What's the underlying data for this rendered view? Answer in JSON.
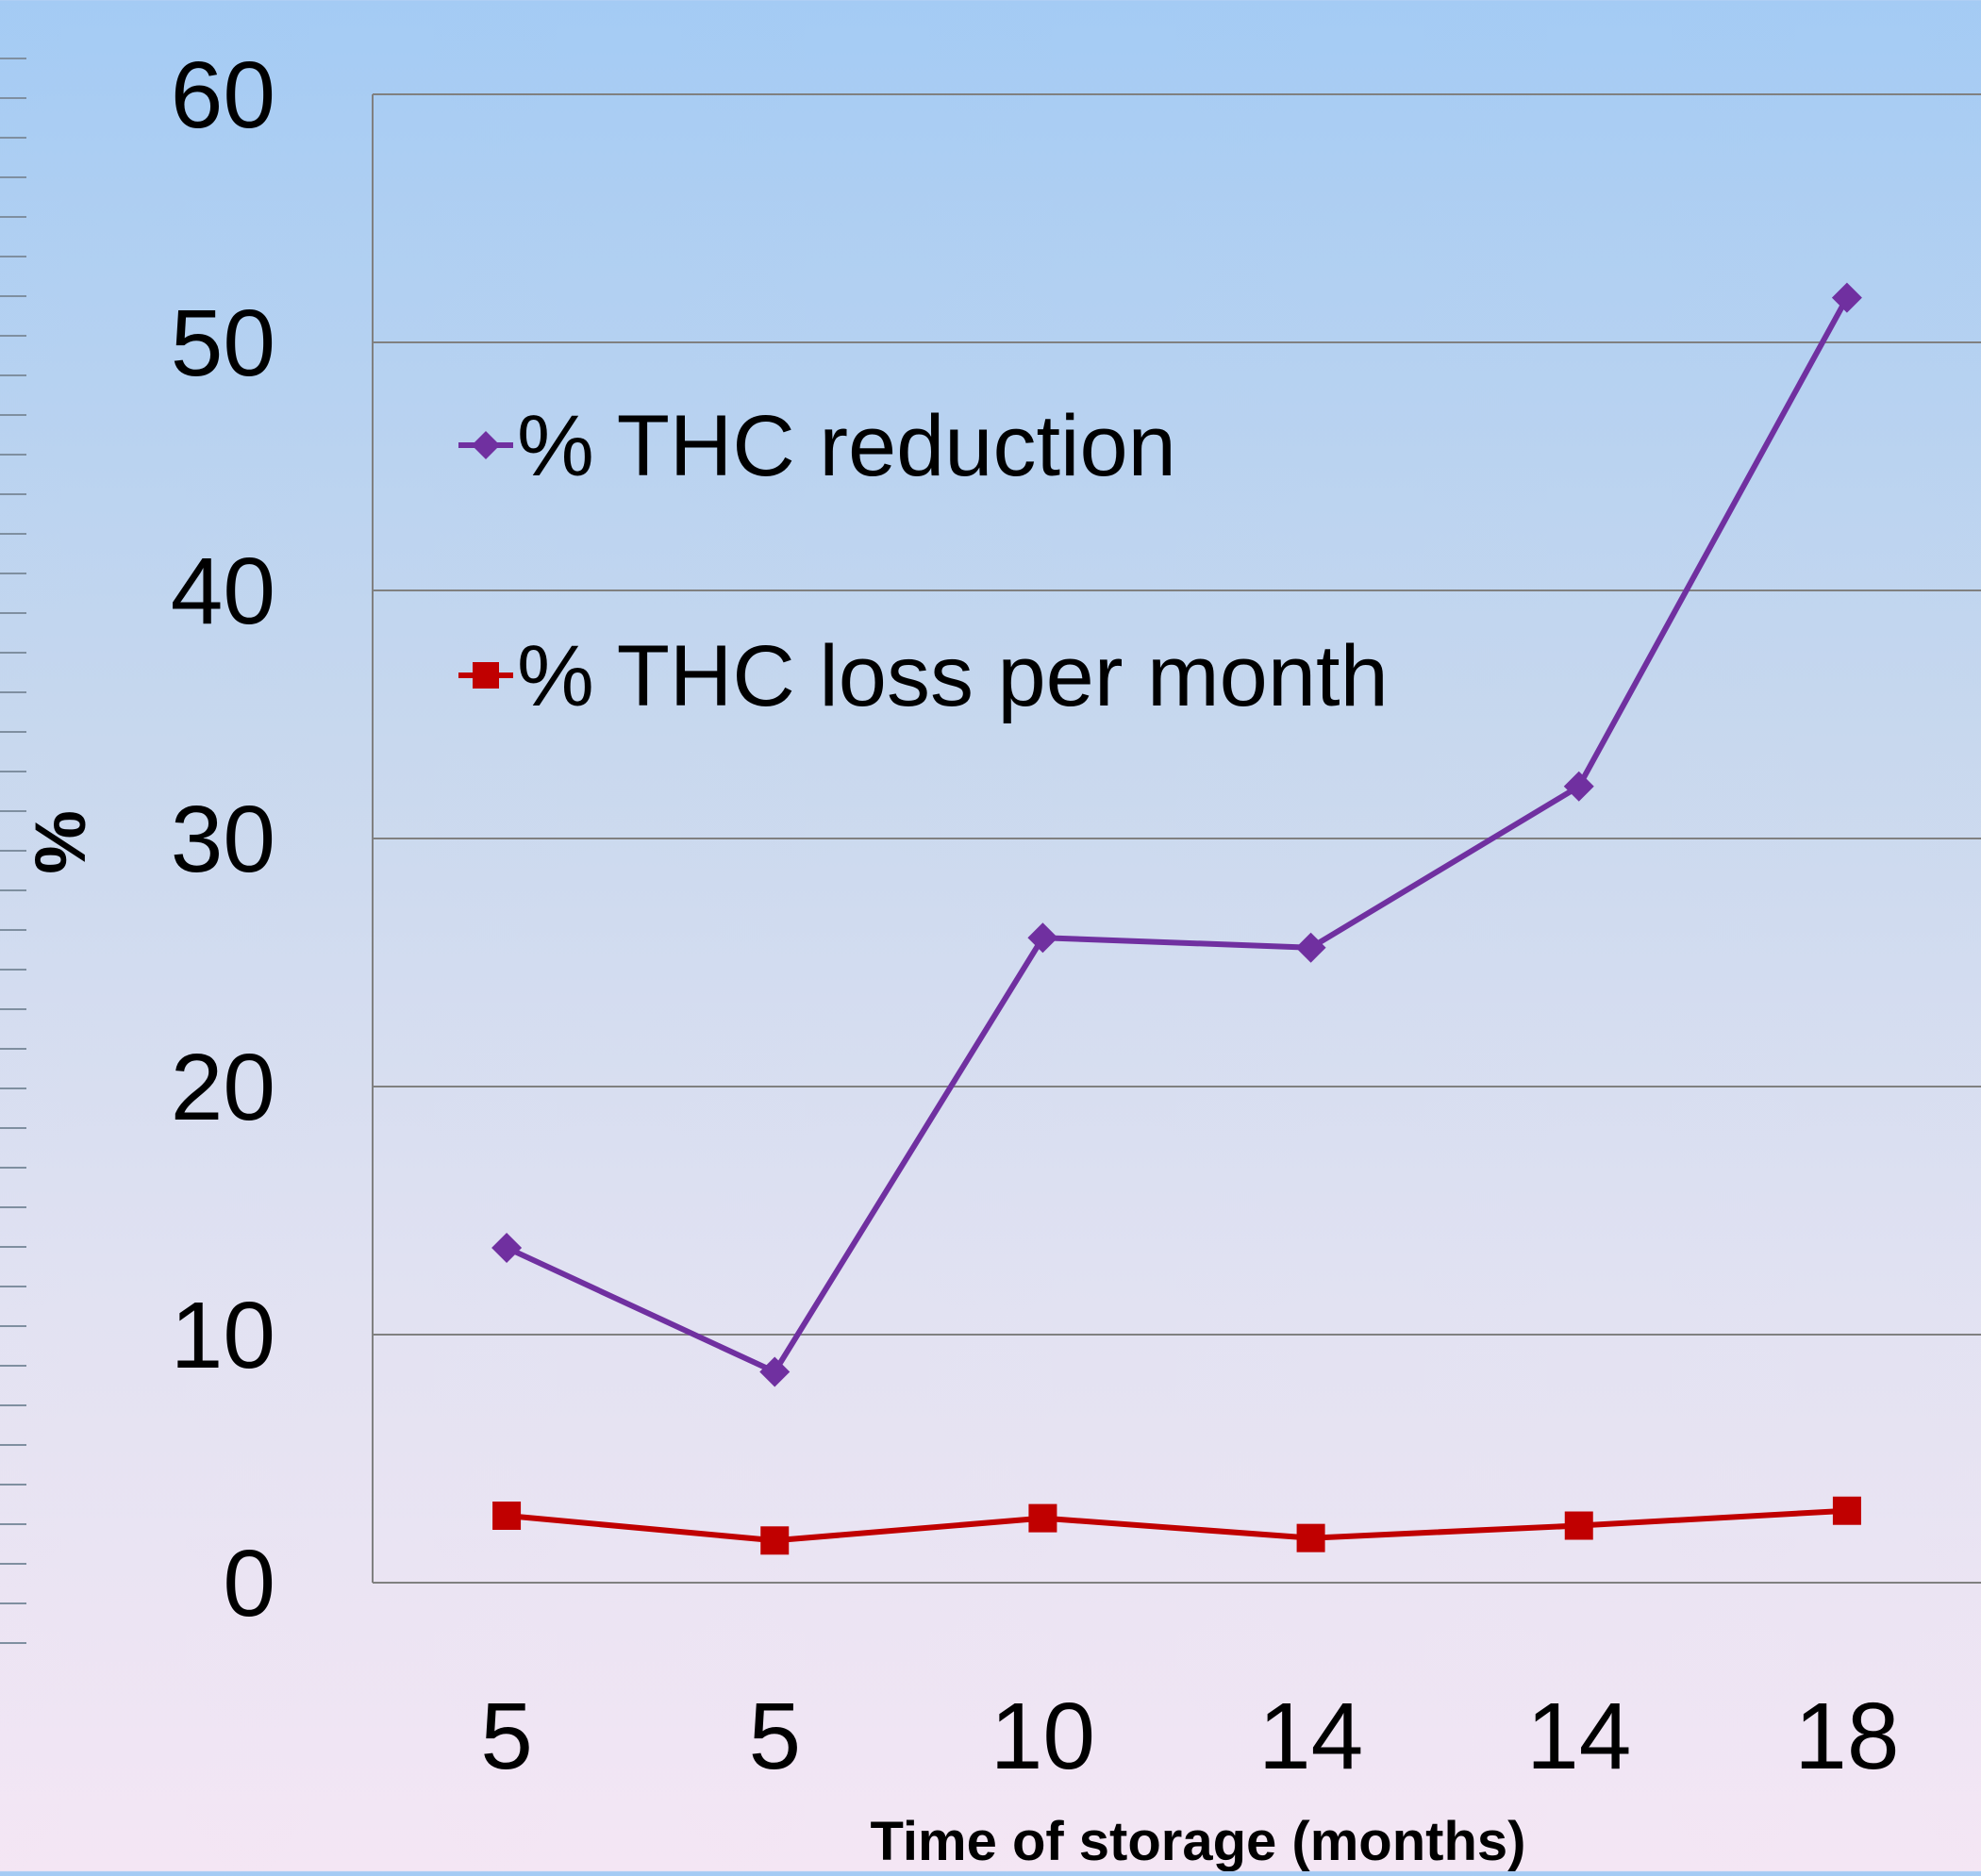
{
  "chart_data": {
    "type": "line",
    "title": "",
    "xlabel": "Time of storage (months)",
    "ylabel": "%",
    "categories": [
      "5",
      "5",
      "10",
      "14",
      "14",
      "18"
    ],
    "ylim": [
      0,
      60
    ],
    "yticks": [
      "0",
      "10",
      "20",
      "30",
      "40",
      "50",
      "60"
    ],
    "grid": true,
    "legend_position": "top-left",
    "series": [
      {
        "name": "% THC reduction",
        "values": [
          13.5,
          8.5,
          26.0,
          25.6,
          32.1,
          51.8
        ],
        "color": "#7030a0",
        "marker": "diamond"
      },
      {
        "name": "% THC loss per month",
        "values": [
          2.7,
          1.7,
          2.6,
          1.8,
          2.3,
          2.9
        ],
        "color": "#c00000",
        "marker": "square"
      }
    ]
  }
}
